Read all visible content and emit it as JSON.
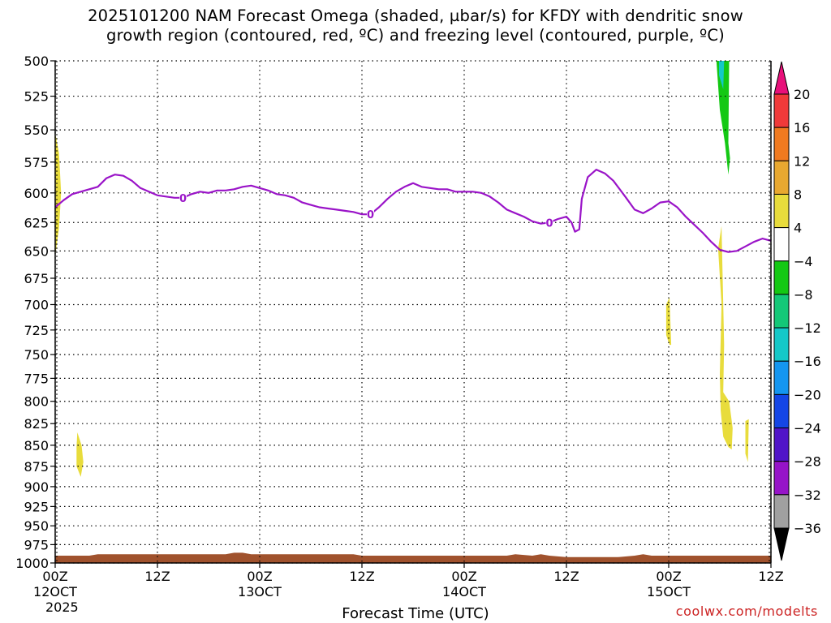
{
  "chart_data": {
    "type": "heatmap",
    "title_lines": [
      "2025101200 NAM Forecast Omega (shaded, µbar/s) for KFDY with dendritic snow",
      "growth region (contoured, red, ºC) and freezing level (contoured, purple, ºC)"
    ],
    "xlabel": "Forecast Time (UTC)",
    "credit": "coolwx.com/modelts",
    "y_axis": {
      "scale": "log",
      "ticks": [
        500,
        525,
        550,
        575,
        600,
        625,
        650,
        675,
        700,
        725,
        750,
        775,
        800,
        825,
        850,
        875,
        900,
        925,
        950,
        975,
        1000
      ],
      "range": [
        1000,
        500
      ]
    },
    "x_axis": {
      "range_hours": [
        0,
        84
      ],
      "ticks": [
        {
          "h": 0,
          "lines": [
            "00Z",
            "12OCT",
            "2025"
          ]
        },
        {
          "h": 12,
          "lines": [
            "12Z"
          ]
        },
        {
          "h": 24,
          "lines": [
            "00Z",
            "13OCT"
          ]
        },
        {
          "h": 36,
          "lines": [
            "12Z"
          ]
        },
        {
          "h": 48,
          "lines": [
            "00Z",
            "14OCT"
          ]
        },
        {
          "h": 60,
          "lines": [
            "12Z"
          ]
        },
        {
          "h": 72,
          "lines": [
            "00Z",
            "15OCT"
          ]
        },
        {
          "h": 84,
          "lines": [
            "12Z"
          ]
        }
      ]
    },
    "colorbar": {
      "labels": [
        "20",
        "16",
        "12",
        "8",
        "4",
        "−4",
        "−8",
        "−12",
        "−16",
        "−20",
        "−24",
        "−28",
        "−32",
        "−36"
      ],
      "colors": [
        "#e8107a",
        "#f03a3a",
        "#f07a20",
        "#e8a830",
        "#e8dc3c",
        "#ffffff",
        "#14c814",
        "#14c878",
        "#14c8c8",
        "#1496f0",
        "#1446e6",
        "#5014c8",
        "#9614c8",
        "#a0a0a0",
        "#000000"
      ]
    },
    "freezing_level": {
      "color": "#9a14c8",
      "label": "0",
      "label_positions_h": [
        15,
        37,
        58
      ],
      "points": [
        [
          0,
          612
        ],
        [
          1,
          606
        ],
        [
          2,
          601
        ],
        [
          3,
          599
        ],
        [
          4,
          597
        ],
        [
          5,
          595
        ],
        [
          6,
          588
        ],
        [
          7,
          585
        ],
        [
          8,
          586
        ],
        [
          9,
          590
        ],
        [
          10,
          596
        ],
        [
          11,
          599
        ],
        [
          12,
          602
        ],
        [
          13,
          603
        ],
        [
          14,
          604
        ],
        [
          15,
          604
        ],
        [
          16,
          601
        ],
        [
          17,
          599
        ],
        [
          18,
          600
        ],
        [
          19,
          598
        ],
        [
          20,
          598
        ],
        [
          21,
          597
        ],
        [
          22,
          595
        ],
        [
          23,
          594
        ],
        [
          24,
          596
        ],
        [
          25,
          598
        ],
        [
          26,
          601
        ],
        [
          27,
          602
        ],
        [
          28,
          604
        ],
        [
          29,
          608
        ],
        [
          30,
          610
        ],
        [
          31,
          612
        ],
        [
          32,
          613
        ],
        [
          33,
          614
        ],
        [
          34,
          615
        ],
        [
          35,
          616
        ],
        [
          36,
          618
        ],
        [
          37,
          618
        ],
        [
          38,
          612
        ],
        [
          39,
          605
        ],
        [
          40,
          599
        ],
        [
          41,
          595
        ],
        [
          42,
          592
        ],
        [
          43,
          595
        ],
        [
          44,
          596
        ],
        [
          45,
          597
        ],
        [
          46,
          597
        ],
        [
          47,
          599
        ],
        [
          48,
          599
        ],
        [
          49,
          599
        ],
        [
          50,
          600
        ],
        [
          51,
          603
        ],
        [
          52,
          608
        ],
        [
          53,
          614
        ],
        [
          54,
          617
        ],
        [
          55,
          620
        ],
        [
          56,
          624
        ],
        [
          57,
          626
        ],
        [
          58,
          625
        ],
        [
          59,
          622
        ],
        [
          60,
          620
        ],
        [
          60.6,
          625
        ],
        [
          61,
          633
        ],
        [
          61.5,
          631
        ],
        [
          61.8,
          605
        ],
        [
          62.5,
          587
        ],
        [
          63.5,
          581
        ],
        [
          64.5,
          584
        ],
        [
          65.5,
          590
        ],
        [
          67,
          604
        ],
        [
          68,
          614
        ],
        [
          69,
          617
        ],
        [
          70,
          613
        ],
        [
          71,
          608
        ],
        [
          72,
          607
        ],
        [
          73,
          612
        ],
        [
          74,
          620
        ],
        [
          75,
          627
        ],
        [
          76,
          634
        ],
        [
          77,
          642
        ],
        [
          78,
          649
        ],
        [
          79,
          651
        ],
        [
          80,
          650
        ],
        [
          81,
          646
        ],
        [
          82,
          642
        ],
        [
          83,
          639
        ],
        [
          84,
          641
        ]
      ]
    },
    "omega_regions": [
      {
        "color": "#e8dc3c",
        "points": [
          [
            0,
            552
          ],
          [
            0.45,
            568
          ],
          [
            0.7,
            600
          ],
          [
            0.45,
            630
          ],
          [
            0,
            655
          ]
        ]
      },
      {
        "color": "#e8dc3c",
        "points": [
          [
            2.6,
            835
          ],
          [
            3.1,
            850
          ],
          [
            3.3,
            870
          ],
          [
            3.0,
            888
          ],
          [
            2.5,
            875
          ],
          [
            2.5,
            852
          ]
        ]
      },
      {
        "color": "#e8dc3c",
        "points": [
          [
            71.7,
            700
          ],
          [
            72.1,
            693
          ],
          [
            72.3,
            740
          ],
          [
            72.1,
            740
          ],
          [
            71.7,
            730
          ]
        ]
      },
      {
        "color": "#e8dc3c",
        "points": [
          [
            77.8,
            648
          ],
          [
            78.2,
            628
          ],
          [
            78.5,
            740
          ],
          [
            78.4,
            790
          ],
          [
            79.1,
            800
          ],
          [
            79.5,
            830
          ],
          [
            79.4,
            855
          ],
          [
            79.0,
            852
          ],
          [
            78.4,
            840
          ],
          [
            78.1,
            810
          ],
          [
            78.0,
            770
          ],
          [
            78.2,
            700
          ]
        ]
      },
      {
        "color": "#e8dc3c",
        "points": [
          [
            81.0,
            822
          ],
          [
            81.4,
            820
          ],
          [
            81.3,
            870
          ],
          [
            81.0,
            860
          ]
        ]
      },
      {
        "color": "#14c814",
        "points": [
          [
            77.6,
            490
          ],
          [
            79.1,
            490
          ],
          [
            79.0,
            560
          ],
          [
            79.2,
            572
          ],
          [
            79.0,
            585
          ],
          [
            78.6,
            560
          ],
          [
            78.0,
            535
          ],
          [
            77.6,
            500
          ]
        ]
      },
      {
        "color": "#14c8c8",
        "points": [
          [
            77.9,
            490
          ],
          [
            78.5,
            490
          ],
          [
            78.4,
            520
          ],
          [
            77.9,
            510
          ]
        ]
      }
    ],
    "terrain": {
      "color": "#a0522d",
      "top_points": [
        [
          0,
          990
        ],
        [
          4,
          990
        ],
        [
          5,
          988
        ],
        [
          20,
          988
        ],
        [
          21,
          986
        ],
        [
          22,
          986
        ],
        [
          23,
          988
        ],
        [
          35,
          988
        ],
        [
          36,
          990
        ],
        [
          53,
          990
        ],
        [
          54,
          988
        ],
        [
          56,
          990
        ],
        [
          57,
          988
        ],
        [
          58,
          990
        ],
        [
          60,
          992
        ],
        [
          66,
          992
        ],
        [
          68,
          990
        ],
        [
          69,
          988
        ],
        [
          70,
          990
        ],
        [
          84,
          990
        ]
      ]
    }
  }
}
